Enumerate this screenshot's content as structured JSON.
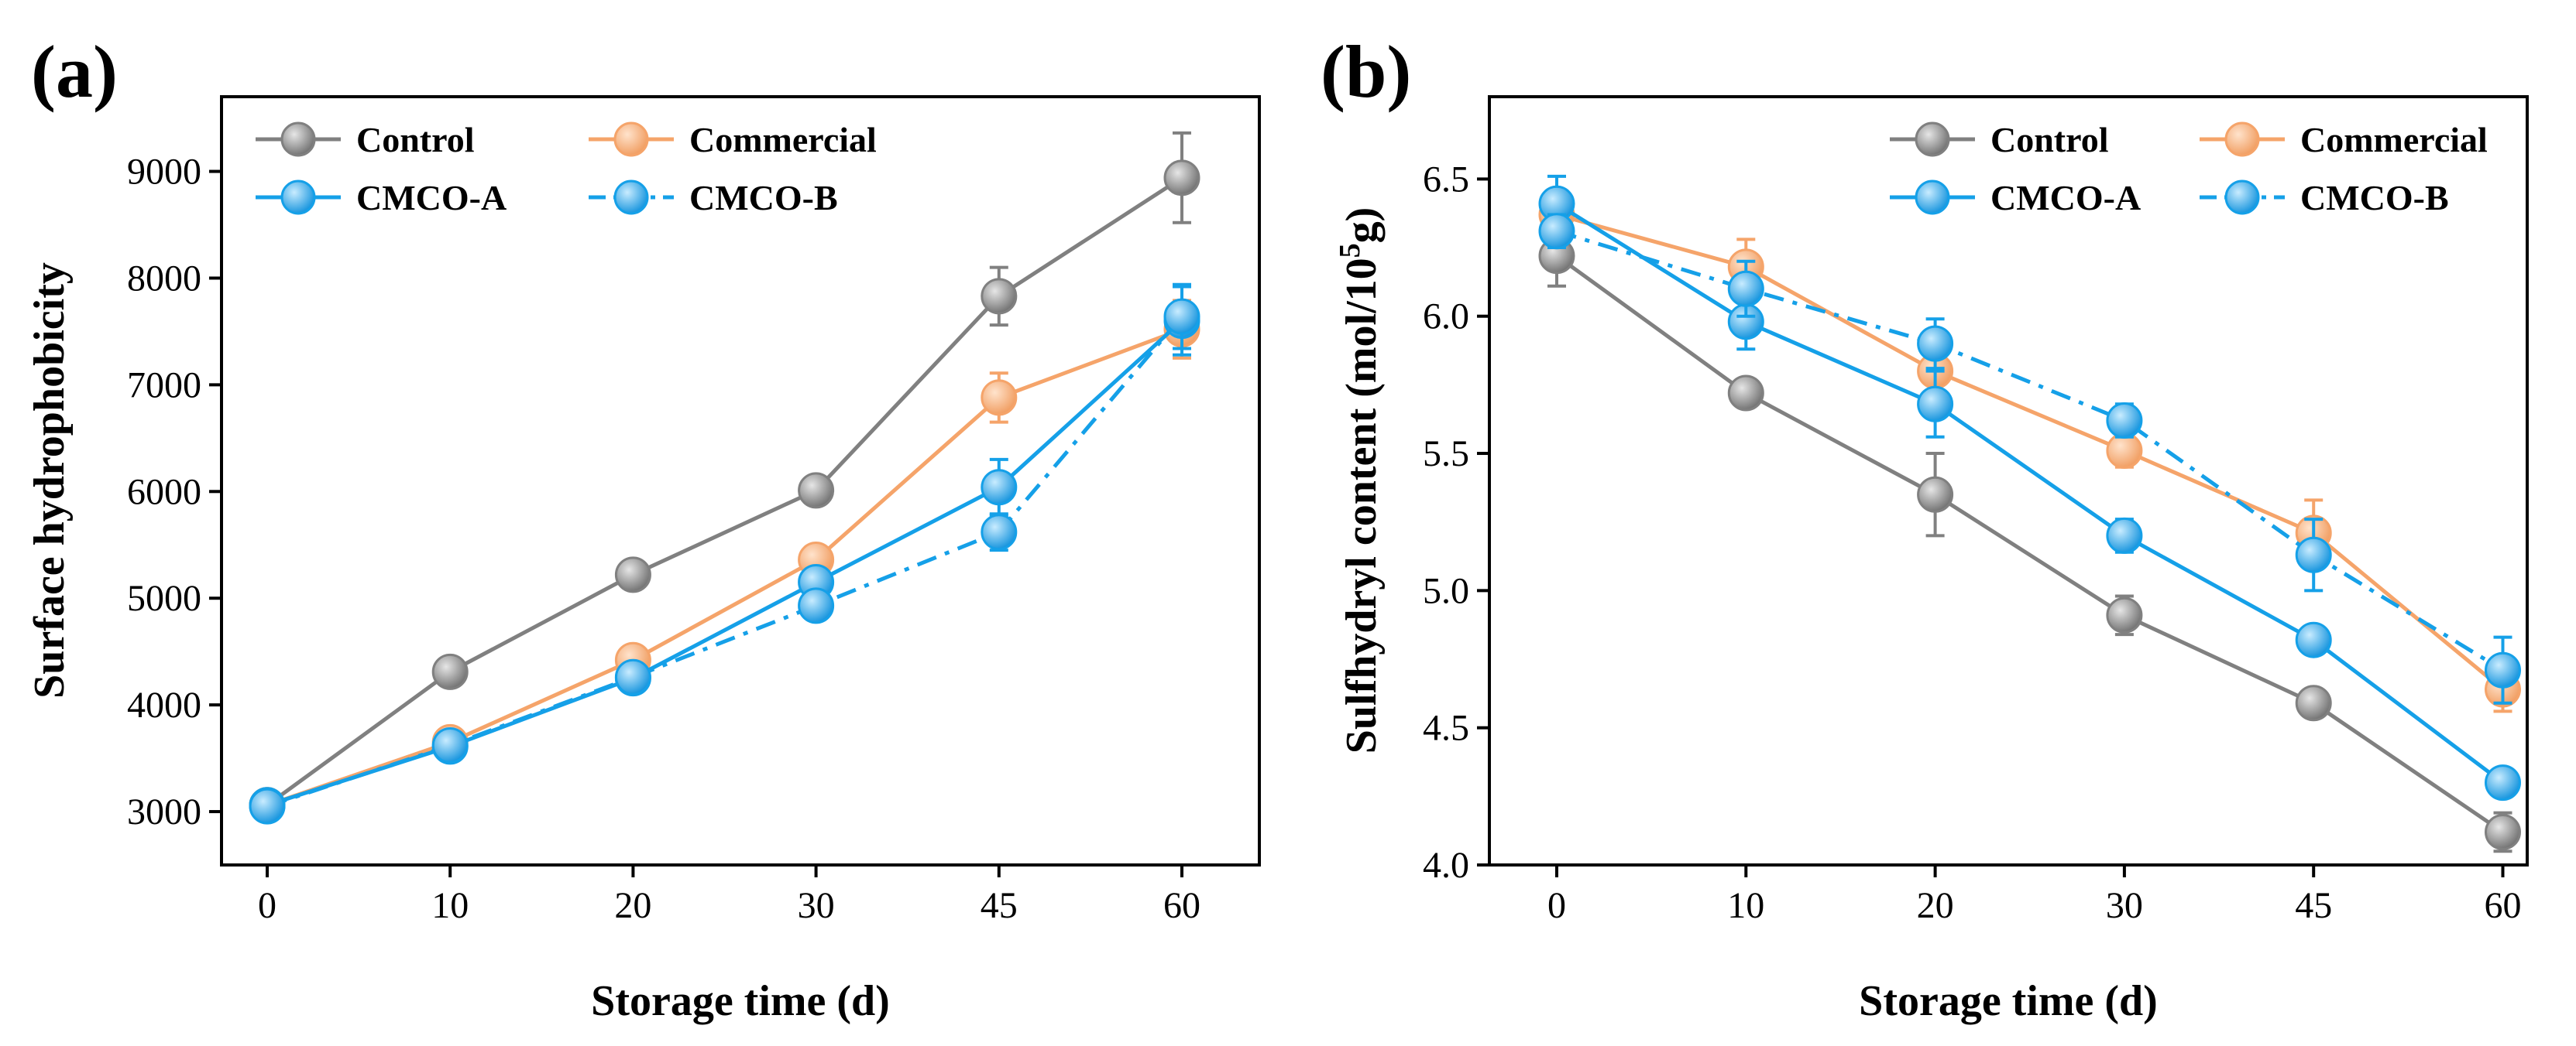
{
  "colors": {
    "Control": "#808080",
    "Commercial": "#F5A46A",
    "CMCO-A": "#15A0E8",
    "CMCO-B": "#15A0E8"
  },
  "chart_data": [
    {
      "panel": "(a)",
      "type": "line",
      "xlabel": "Storage time (d)",
      "ylabel": "Surface hydrophobicity",
      "categories": [
        "0",
        "10",
        "20",
        "30",
        "45",
        "60"
      ],
      "ylim": [
        2500,
        9700
      ],
      "yticks": [
        "3000",
        "4000",
        "5000",
        "6000",
        "7000",
        "8000",
        "9000"
      ],
      "legend": "top-left",
      "series": [
        {
          "name": "Control",
          "values": [
            3060,
            4310,
            5220,
            6010,
            7830,
            8940
          ],
          "errors": [
            60,
            60,
            70,
            80,
            270,
            420
          ],
          "dashed": false
        },
        {
          "name": "Commercial",
          "values": [
            3060,
            3650,
            4420,
            5360,
            6880,
            7520
          ],
          "errors": [
            60,
            60,
            70,
            80,
            230,
            270
          ],
          "dashed": false
        },
        {
          "name": "CMCO-A",
          "values": [
            3060,
            3610,
            4250,
            5150,
            6040,
            7600
          ],
          "errors": [
            60,
            60,
            70,
            110,
            260,
            320
          ],
          "dashed": false
        },
        {
          "name": "CMCO-B",
          "values": [
            3050,
            3620,
            4260,
            4930,
            5620,
            7640
          ],
          "errors": [
            60,
            60,
            70,
            70,
            170,
            300
          ],
          "dashed": true
        }
      ]
    },
    {
      "panel": "(b)",
      "type": "line",
      "xlabel": "Storage time (d)",
      "ylabel_main": "Sulfhydryl content (mol/10",
      "ylabel_sup": "5",
      "ylabel_end": "g)",
      "categories": [
        "0",
        "10",
        "20",
        "30",
        "45",
        "60"
      ],
      "ylim": [
        4.0,
        6.8
      ],
      "yticks": [
        "4.0",
        "4.5",
        "5.0",
        "5.5",
        "6.0",
        "6.5"
      ],
      "legend": "top-right",
      "series": [
        {
          "name": "Control",
          "values": [
            6.22,
            5.72,
            5.35,
            4.91,
            4.59,
            4.12
          ],
          "errors": [
            0.11,
            0.04,
            0.15,
            0.07,
            0.04,
            0.07
          ],
          "dashed": false
        },
        {
          "name": "Commercial",
          "values": [
            6.37,
            6.18,
            5.8,
            5.51,
            5.21,
            4.64
          ],
          "errors": [
            0.06,
            0.1,
            0.08,
            0.06,
            0.12,
            0.08
          ],
          "dashed": false
        },
        {
          "name": "CMCO-A",
          "values": [
            6.41,
            5.98,
            5.68,
            5.2,
            4.82,
            4.3
          ],
          "errors": [
            0.1,
            0.1,
            0.12,
            0.06,
            0.04,
            0.04
          ],
          "dashed": false
        },
        {
          "name": "CMCO-B",
          "values": [
            6.31,
            6.1,
            5.9,
            5.62,
            5.13,
            4.71
          ],
          "errors": [
            0.06,
            0.1,
            0.09,
            0.06,
            0.13,
            0.12
          ],
          "dashed": true
        }
      ]
    }
  ]
}
